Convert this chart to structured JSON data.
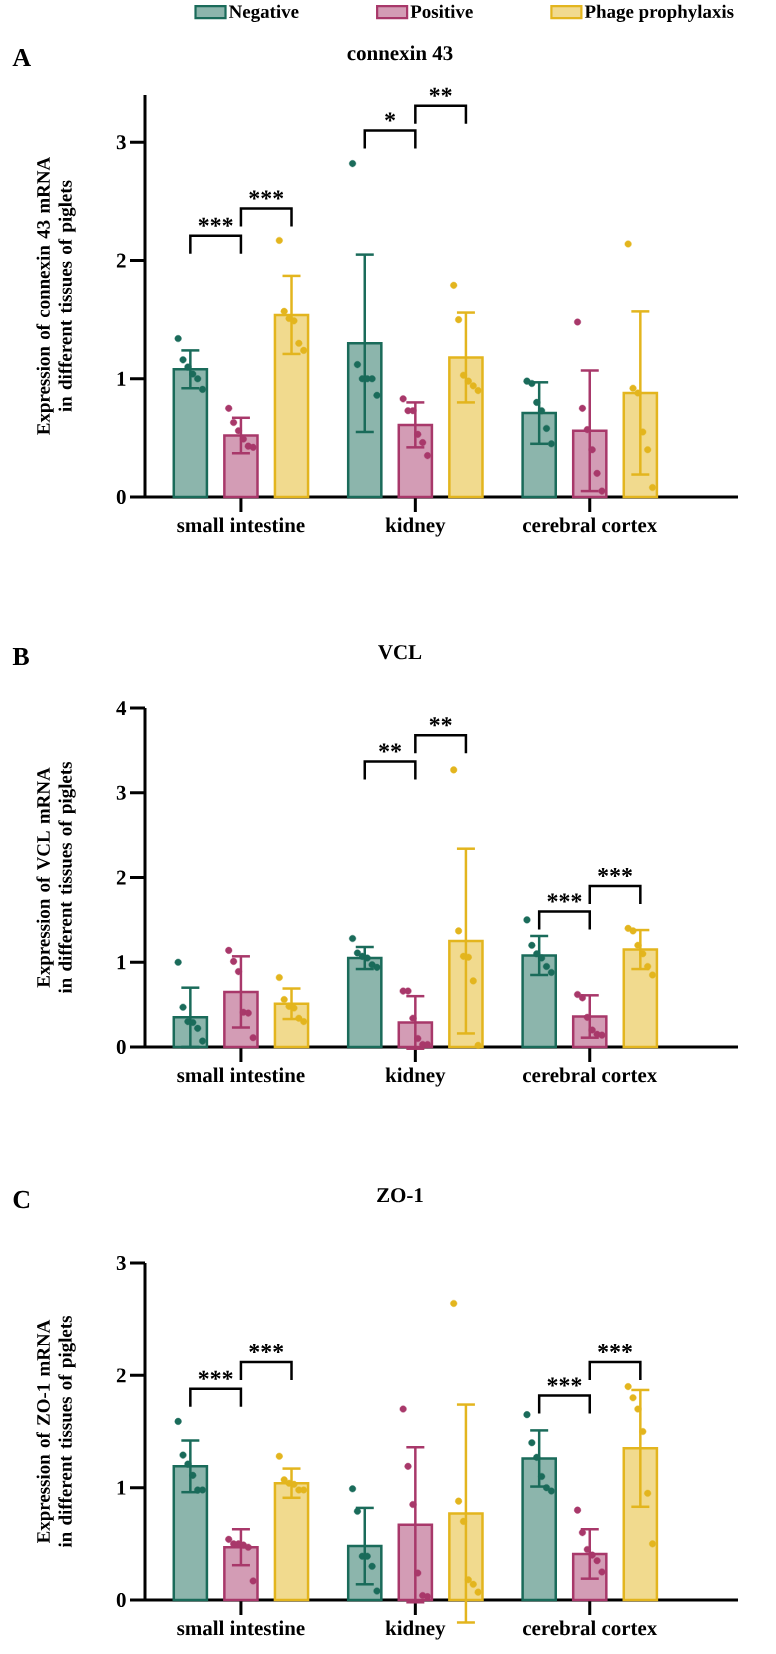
{
  "chart_data": [
    {
      "type": "bar",
      "title": "connexin 43",
      "ylabel": "Expression of connexin 43 mRNA in different tissues of piglets",
      "categories": [
        "small intestine",
        "kidney",
        "cerebral cortex"
      ],
      "ylim": [
        0,
        3.4
      ],
      "yticks": [
        0,
        1,
        2,
        3
      ],
      "legend": "top",
      "series": [
        {
          "name": "Negative",
          "color": "#1a6b5a",
          "values": [
            1.08,
            1.3,
            0.71
          ],
          "errors": [
            0.16,
            0.75,
            0.26
          ]
        },
        {
          "name": "Positive",
          "color": "#a8386a",
          "values": [
            0.52,
            0.61,
            0.56
          ],
          "errors": [
            0.15,
            0.19,
            0.51
          ]
        },
        {
          "name": "Phage prophylaxis",
          "color": "#e3b51e",
          "values": [
            1.54,
            1.18,
            0.88
          ],
          "errors": [
            0.33,
            0.38,
            0.69
          ]
        },
        {
          "type": "scatter",
          "color": "#1a6b5a",
          "x": [
            "small intestine",
            "small intestine",
            "small intestine",
            "small intestine",
            "small intestine",
            "small intestine",
            "kidney",
            "kidney",
            "kidney",
            "kidney",
            "kidney",
            "kidney",
            "cerebral cortex",
            "cerebral cortex",
            "cerebral cortex",
            "cerebral cortex",
            "cerebral cortex",
            "cerebral cortex"
          ],
          "values": [
            1.34,
            1.16,
            1.1,
            1.04,
            1.0,
            0.91,
            2.82,
            1.12,
            1.0,
            1.0,
            1.0,
            0.86,
            0.98,
            0.96,
            0.8,
            0.73,
            0.58,
            0.45
          ]
        },
        {
          "type": "scatter",
          "color": "#a8386a",
          "x": [
            "small intestine",
            "small intestine",
            "small intestine",
            "small intestine",
            "small intestine",
            "small intestine",
            "kidney",
            "kidney",
            "kidney",
            "kidney",
            "kidney",
            "kidney",
            "cerebral cortex",
            "cerebral cortex",
            "cerebral cortex",
            "cerebral cortex",
            "cerebral cortex",
            "cerebral cortex"
          ],
          "values": [
            0.75,
            0.63,
            0.56,
            0.49,
            0.43,
            0.42,
            0.83,
            0.73,
            0.73,
            0.53,
            0.46,
            0.35,
            1.48,
            0.75,
            0.57,
            0.4,
            0.2,
            0.05
          ]
        },
        {
          "type": "scatter",
          "color": "#e3b51e",
          "x": [
            "small intestine",
            "small intestine",
            "small intestine",
            "small intestine",
            "small intestine",
            "small intestine",
            "kidney",
            "kidney",
            "kidney",
            "kidney",
            "kidney",
            "kidney",
            "cerebral cortex",
            "cerebral cortex",
            "cerebral cortex",
            "cerebral cortex",
            "cerebral cortex",
            "cerebral cortex"
          ],
          "values": [
            2.17,
            1.57,
            1.51,
            1.49,
            1.3,
            1.24,
            1.79,
            1.5,
            1.03,
            0.98,
            0.94,
            0.9,
            2.14,
            0.92,
            0.88,
            0.55,
            0.4,
            0.08
          ]
        }
      ],
      "annotations": [
        "A",
        "***",
        "***",
        "*",
        "**"
      ]
    },
    {
      "type": "bar",
      "title": "VCL",
      "ylabel": "Expression of VCL mRNA in different tissues of piglets",
      "categories": [
        "small intestine",
        "kidney",
        "cerebral cortex"
      ],
      "ylim": [
        0,
        4
      ],
      "yticks": [
        0,
        1,
        2,
        3,
        4
      ],
      "series": [
        {
          "color": "#1a6b5a",
          "values": [
            0.35,
            1.05,
            1.08
          ],
          "errors": [
            0.35,
            0.13,
            0.23
          ]
        },
        {
          "color": "#a8386a",
          "values": [
            0.65,
            0.29,
            0.36
          ],
          "errors": [
            0.42,
            0.31,
            0.25
          ]
        },
        {
          "color": "#e3b51e",
          "values": [
            0.51,
            1.25,
            1.15
          ],
          "errors": [
            0.18,
            1.09,
            0.23
          ]
        },
        {
          "type": "scatter",
          "color": "#1a6b5a",
          "x": [
            "small intestine",
            "small intestine",
            "small intestine",
            "small intestine",
            "small intestine",
            "small intestine",
            "kidney",
            "kidney",
            "kidney",
            "kidney",
            "kidney",
            "kidney",
            "cerebral cortex",
            "cerebral cortex",
            "cerebral cortex",
            "cerebral cortex",
            "cerebral cortex",
            "cerebral cortex"
          ],
          "values": [
            1.0,
            0.47,
            0.3,
            0.29,
            0.22,
            0.07,
            1.28,
            1.11,
            1.07,
            1.05,
            0.97,
            0.94,
            1.5,
            1.2,
            1.1,
            1.05,
            0.95,
            0.88
          ]
        },
        {
          "type": "scatter",
          "color": "#a8386a",
          "x": [
            "small intestine",
            "small intestine",
            "small intestine",
            "small intestine",
            "small intestine",
            "small intestine",
            "kidney",
            "kidney",
            "kidney",
            "kidney",
            "kidney",
            "kidney",
            "cerebral cortex",
            "cerebral cortex",
            "cerebral cortex",
            "cerebral cortex",
            "cerebral cortex",
            "cerebral cortex"
          ],
          "values": [
            1.14,
            1.01,
            0.89,
            0.41,
            0.4,
            0.11,
            0.66,
            0.66,
            0.34,
            0.1,
            0.03,
            0.03,
            0.62,
            0.58,
            0.35,
            0.2,
            0.15,
            0.14
          ]
        },
        {
          "type": "scatter",
          "color": "#e3b51e",
          "x": [
            "small intestine",
            "small intestine",
            "small intestine",
            "small intestine",
            "small intestine",
            "small intestine",
            "kidney",
            "kidney",
            "kidney",
            "kidney",
            "kidney",
            "kidney",
            "cerebral cortex",
            "cerebral cortex",
            "cerebral cortex",
            "cerebral cortex",
            "cerebral cortex",
            "cerebral cortex"
          ],
          "values": [
            0.82,
            0.56,
            0.48,
            0.46,
            0.34,
            0.3,
            3.27,
            1.37,
            1.07,
            1.06,
            0.78,
            0.02,
            1.4,
            1.37,
            1.2,
            1.1,
            0.95,
            0.85
          ]
        }
      ],
      "annotations": [
        "B",
        "**",
        "**",
        "***",
        "***"
      ]
    },
    {
      "type": "bar",
      "title": "ZO-1",
      "ylabel": "Expression of ZO-1 mRNA in different tissues of piglets",
      "categories": [
        "small intestine",
        "kidney",
        "cerebral cortex"
      ],
      "ylim": [
        0,
        3
      ],
      "yticks": [
        0,
        1,
        2,
        3
      ],
      "series": [
        {
          "color": "#1a6b5a",
          "values": [
            1.19,
            0.48,
            1.26
          ],
          "errors": [
            0.23,
            0.34,
            0.25
          ]
        },
        {
          "color": "#a8386a",
          "values": [
            0.47,
            0.67,
            0.41
          ],
          "errors": [
            0.16,
            0.69,
            0.22
          ]
        },
        {
          "color": "#e3b51e",
          "values": [
            1.04,
            0.77,
            1.35
          ],
          "errors": [
            0.13,
            0.97,
            0.52
          ]
        },
        {
          "type": "scatter",
          "color": "#1a6b5a",
          "x": [
            "small intestine",
            "small intestine",
            "small intestine",
            "small intestine",
            "small intestine",
            "small intestine",
            "kidney",
            "kidney",
            "kidney",
            "kidney",
            "kidney",
            "kidney",
            "cerebral cortex",
            "cerebral cortex",
            "cerebral cortex",
            "cerebral cortex",
            "cerebral cortex",
            "cerebral cortex"
          ],
          "values": [
            1.59,
            1.29,
            1.21,
            1.11,
            0.98,
            0.98,
            0.99,
            0.79,
            0.39,
            0.39,
            0.3,
            0.08,
            1.65,
            1.4,
            1.27,
            1.1,
            1.0,
            0.97
          ]
        },
        {
          "type": "scatter",
          "color": "#a8386a",
          "x": [
            "small intestine",
            "small intestine",
            "small intestine",
            "small intestine",
            "small intestine",
            "small intestine",
            "kidney",
            "kidney",
            "kidney",
            "kidney",
            "kidney",
            "kidney",
            "cerebral cortex",
            "cerebral cortex",
            "cerebral cortex",
            "cerebral cortex",
            "cerebral cortex",
            "cerebral cortex"
          ],
          "values": [
            0.54,
            0.5,
            0.5,
            0.49,
            0.47,
            0.17,
            1.7,
            1.19,
            0.85,
            0.24,
            0.04,
            0.03,
            0.8,
            0.6,
            0.45,
            0.4,
            0.35,
            0.25
          ]
        },
        {
          "type": "scatter",
          "color": "#e3b51e",
          "x": [
            "small intestine",
            "small intestine",
            "small intestine",
            "small intestine",
            "small intestine",
            "small intestine",
            "kidney",
            "kidney",
            "kidney",
            "kidney",
            "kidney",
            "kidney",
            "cerebral cortex",
            "cerebral cortex",
            "cerebral cortex",
            "cerebral cortex",
            "cerebral cortex",
            "cerebral cortex"
          ],
          "values": [
            1.28,
            1.07,
            1.04,
            1.03,
            0.98,
            0.98,
            2.64,
            0.88,
            0.7,
            0.18,
            0.14,
            0.07,
            1.9,
            1.8,
            1.7,
            1.5,
            0.95,
            0.5
          ]
        }
      ],
      "annotations": [
        "C",
        "***",
        "***",
        "***",
        "***"
      ]
    }
  ]
}
